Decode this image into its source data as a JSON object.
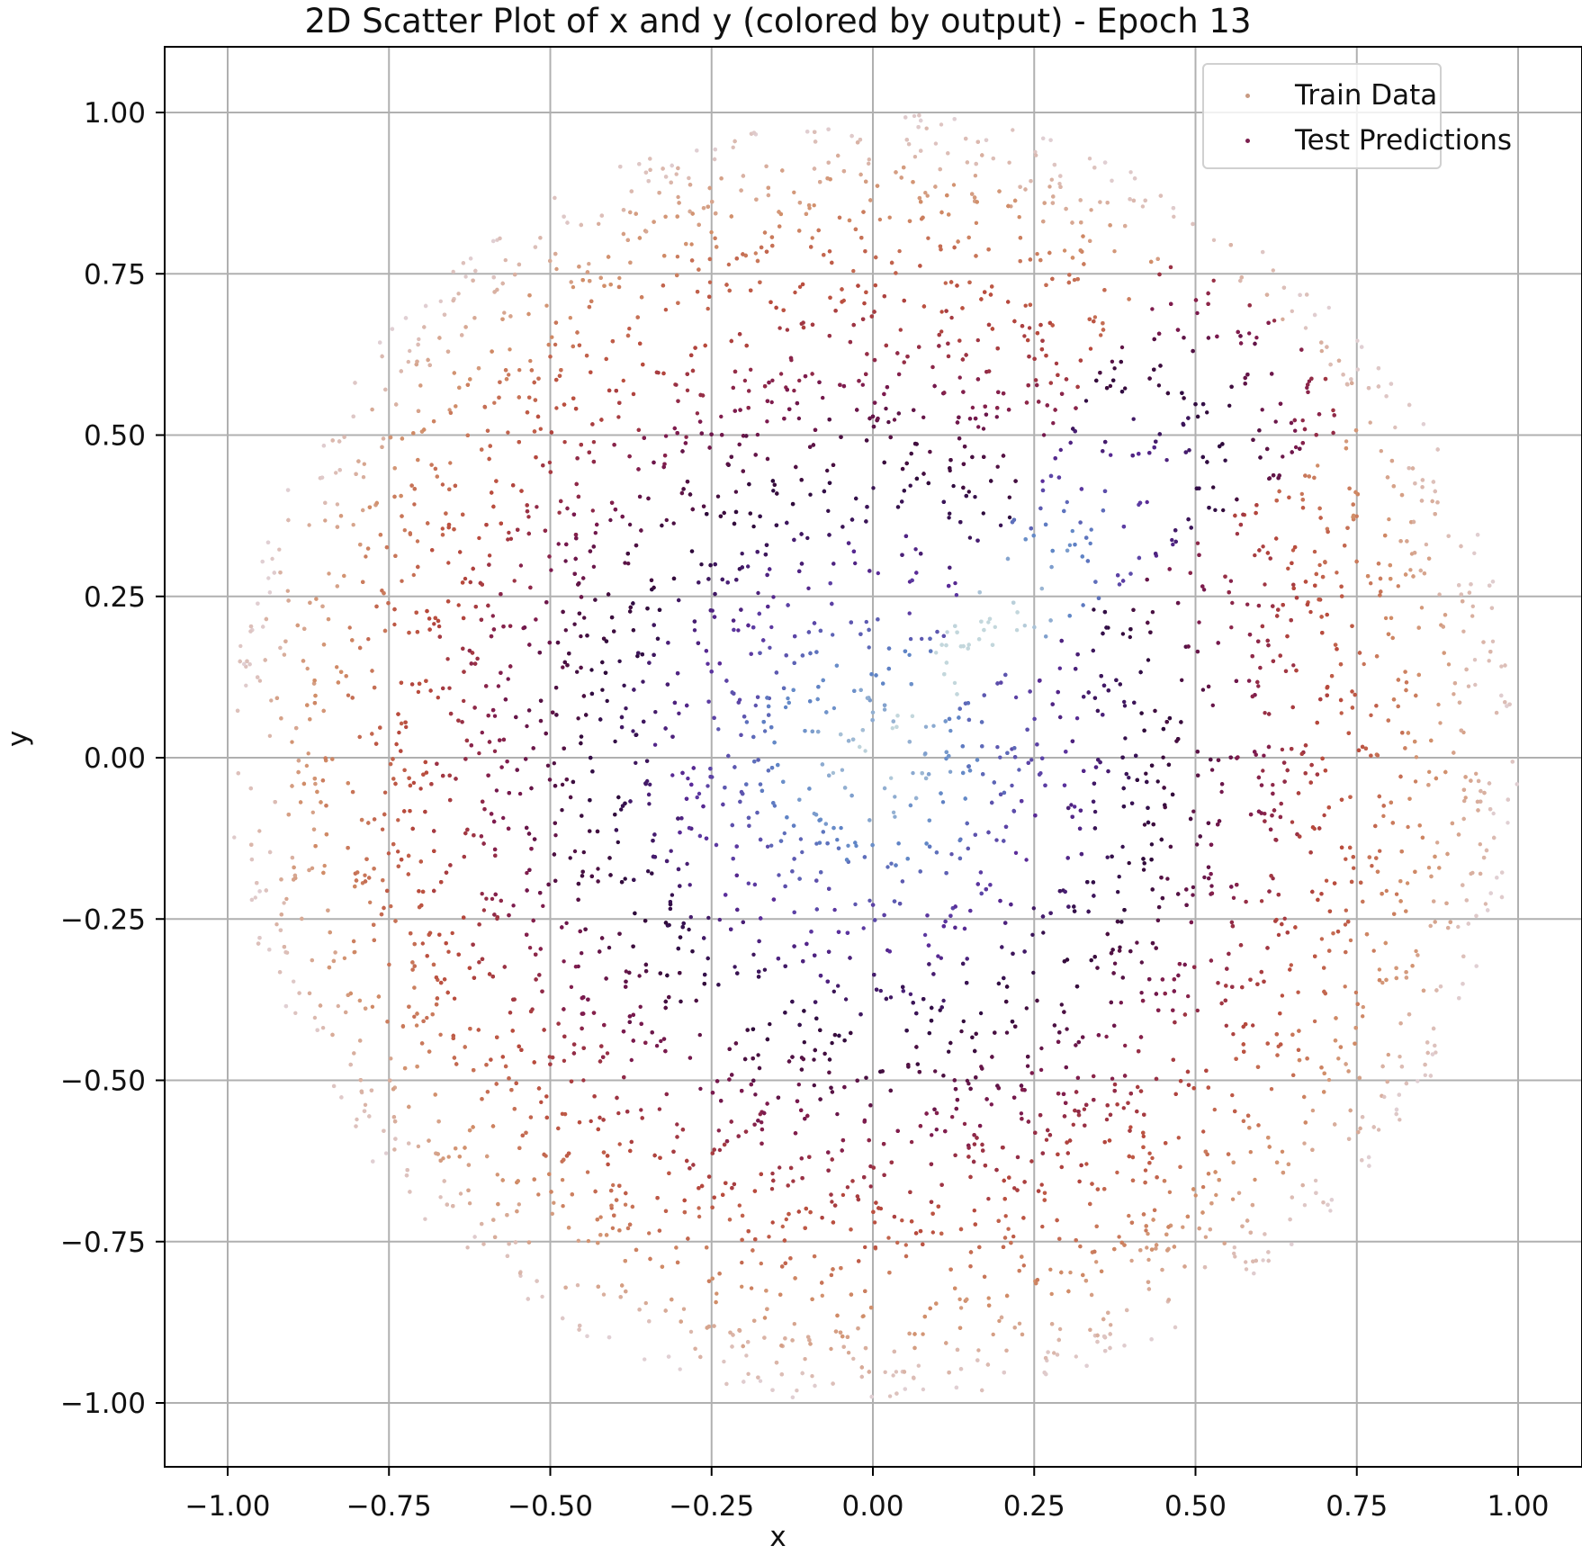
{
  "chart_data": {
    "type": "scatter",
    "title": "2D Scatter Plot of x and y (colored by output) - Epoch 13",
    "xlabel": "x",
    "ylabel": "y",
    "xlim": [
      -1.1,
      1.1
    ],
    "ylim": [
      -1.1,
      1.1
    ],
    "xticks": [
      "−1.00",
      "−0.75",
      "−0.50",
      "−0.25",
      "0.00",
      "0.25",
      "0.50",
      "0.75",
      "1.00"
    ],
    "yticks": [
      "1.00",
      "0.75",
      "0.50",
      "0.25",
      "0.00",
      "−0.25",
      "−0.50",
      "−0.75",
      "−1.00"
    ],
    "grid": true,
    "legend_position": "upper right",
    "series": [
      {
        "name": "Train Data",
        "color": "#c89a82",
        "description": "dense points filling the unit disk, colored by a concentric-ring output"
      },
      {
        "name": "Test Predictions",
        "color": "#7b1f4e",
        "description": "points colored by predicted output; a diagonal streak of anomalous colors from the center toward the upper right"
      }
    ],
    "color_gradient": [
      "#c3d7dc",
      "#5f85c6",
      "#5b2c9a",
      "#2d0a3a",
      "#7c1a4e",
      "#b84a3c",
      "#d18e69",
      "#e0cfd3"
    ]
  }
}
